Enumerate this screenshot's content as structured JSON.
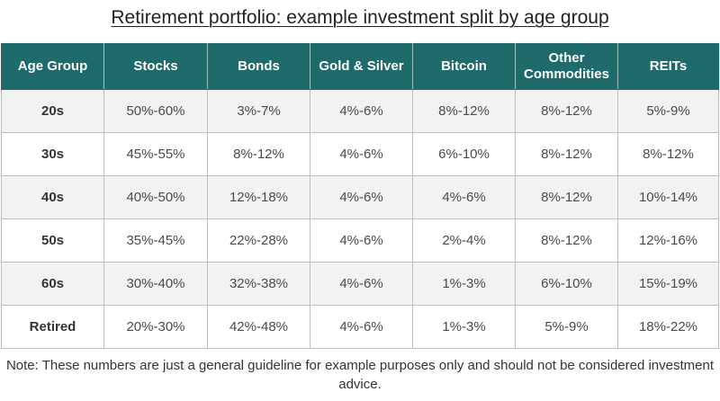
{
  "title": "Retirement portfolio: example investment split by age group",
  "table": {
    "headers": [
      "Age Group",
      "Stocks",
      "Bonds",
      "Gold & Silver",
      "Bitcoin",
      "Other Commodities",
      "REITs"
    ],
    "rows": [
      [
        "20s",
        "50%-60%",
        "3%-7%",
        "4%-6%",
        "8%-12%",
        "8%-12%",
        "5%-9%"
      ],
      [
        "30s",
        "45%-55%",
        "8%-12%",
        "4%-6%",
        "6%-10%",
        "8%-12%",
        "8%-12%"
      ],
      [
        "40s",
        "40%-50%",
        "12%-18%",
        "4%-6%",
        "4%-6%",
        "8%-12%",
        "10%-14%"
      ],
      [
        "50s",
        "35%-45%",
        "22%-28%",
        "4%-6%",
        "2%-4%",
        "8%-12%",
        "12%-16%"
      ],
      [
        "60s",
        "30%-40%",
        "32%-38%",
        "4%-6%",
        "1%-3%",
        "6%-10%",
        "15%-19%"
      ],
      [
        "Retired",
        "20%-30%",
        "42%-48%",
        "4%-6%",
        "1%-3%",
        "5%-9%",
        "18%-22%"
      ]
    ]
  },
  "note": "Note: These numbers are just a general guideline for example purposes only and should not be considered investment advice.",
  "colors": {
    "header_bg": "#1f6b6b",
    "header_text": "#ffffff",
    "row_stripe": "#f2f2f2",
    "border": "#bfbfbf"
  }
}
